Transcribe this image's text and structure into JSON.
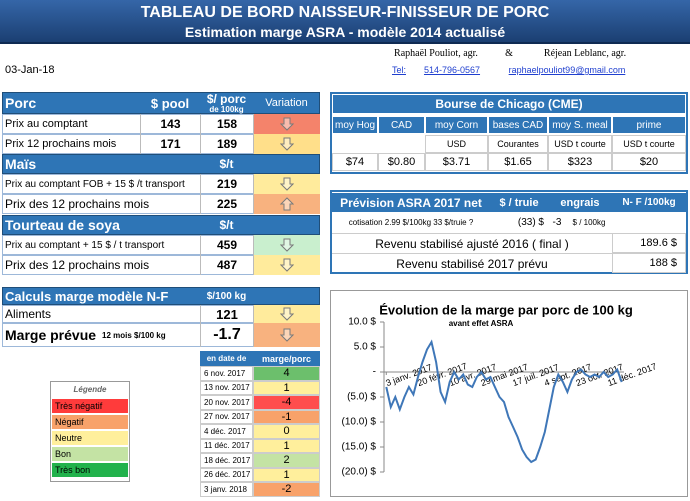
{
  "header": {
    "title": "TABLEAU DE BORD NAISSEUR-FINISSEUR DE PORC",
    "subtitle": "Estimation marge ASRA - modèle 2014 actualisé"
  },
  "authors": {
    "first": "Raphaël Pouliot, agr.",
    "and": "&",
    "second": "Réjean Leblanc, agr."
  },
  "contact": {
    "tel_label": "Tel:",
    "phone": "514-796-0567",
    "email": "raphaelpouliot99@gmail.com"
  },
  "date": "03-Jan-18",
  "porc": {
    "title": "Porc",
    "col_pool": "$ pool",
    "col_porc": "$/ porc",
    "col_porc_sub": "de 100kg",
    "col_variation": "Variation",
    "rows": [
      [
        "Prix au comptant",
        143,
        158
      ],
      [
        "Prix 12 prochains mois",
        171,
        189
      ]
    ]
  },
  "mais": {
    "title": "Maïs",
    "unit": "$/t",
    "rows": [
      [
        "Prix au comptant FOB + 15 $ /t transport",
        219
      ],
      [
        "Prix des 12 prochains mois",
        225
      ]
    ]
  },
  "soya": {
    "title": "Tourteau de soya",
    "unit": "$/t",
    "rows": [
      [
        "Prix au comptant + 15 $ / t transport",
        459
      ],
      [
        "Prix des 12 prochains mois",
        487
      ]
    ]
  },
  "calculs": {
    "title": "Calculs marge  modèle N-F",
    "unit": "$/100 kg",
    "aliments_label": "Aliments",
    "aliments": 121,
    "marge_label": "Marge prévue",
    "marge_note": "12 mois $/100 kg",
    "marge": -1.7
  },
  "chicago": {
    "title": "Bourse de Chicago (CME)",
    "columns": [
      {
        "name": "moy Hog",
        "value": "$74"
      },
      {
        "name": "CAD",
        "value": "$0.80"
      },
      {
        "name": "moy Corn",
        "unit": "USD",
        "value": "$3.71"
      },
      {
        "name": "bases CAD",
        "unit": "Courantes",
        "value": "$1.65"
      },
      {
        "name": "moy S. meal",
        "unit": "USD t courte",
        "value": "$323"
      },
      {
        "name": "prime",
        "unit": "USD t courte",
        "value": "$20"
      }
    ]
  },
  "prevision": {
    "title": "Prévision ASRA 2017 net",
    "col_truie": "$ / truie",
    "col_engrais": "engrais",
    "col_nf": "N- F /100kg",
    "cotisation": "cotisation 2.99 $/100kg  33 $/truie ?",
    "truie": "(33) $",
    "engrais": -3,
    "engrais_unit": "$ / 100kg",
    "rows": [
      [
        "Revenu stabilisé ajusté 2016 ( final )",
        "189.6 $"
      ],
      [
        "Revenu stabilisé 2017 prévu",
        "188 $"
      ]
    ]
  },
  "legend": {
    "title": "Légende",
    "items": [
      {
        "label": "Très négatif",
        "color": "#ff3b3b"
      },
      {
        "label": "Négatif",
        "color": "#f8a26a"
      },
      {
        "label": "Neutre",
        "color": "#ffef9c"
      },
      {
        "label": "Bon",
        "color": "#c4e3a4"
      },
      {
        "label": "Très bon",
        "color": "#22b24c"
      }
    ]
  },
  "marge_table": {
    "col_date": "en date de",
    "col_marge": "marge/porc",
    "rows": [
      {
        "date": "6 nov. 2017",
        "marge": 4,
        "color": "#6cbf6c"
      },
      {
        "date": "13 nov. 2017",
        "marge": 1,
        "color": "#ffef9c"
      },
      {
        "date": "20 nov. 2017",
        "marge": -4,
        "color": "#ff4d4d"
      },
      {
        "date": "27 nov. 2017",
        "marge": -1,
        "color": "#f8a26a"
      },
      {
        "date": "4 déc. 2017",
        "marge": 0,
        "color": "#ffef9c"
      },
      {
        "date": "11 déc. 2017",
        "marge": 1,
        "color": "#ffef9c"
      },
      {
        "date": "18 déc. 2017",
        "marge": 2,
        "color": "#c4e3a4"
      },
      {
        "date": "26 déc. 2017",
        "marge": 1,
        "color": "#ffef9c"
      },
      {
        "date": "3 janv. 2018",
        "marge": -2,
        "color": "#f8a26a"
      }
    ]
  },
  "chart_data": {
    "type": "line",
    "title": "Évolution de la marge par porc de 100 kg",
    "subtitle": "avant effet ASRA",
    "color": "#3f77b8",
    "categories": [
      "3 janv. 2017",
      null,
      null,
      null,
      null,
      null,
      null,
      "20 févr. 2017",
      null,
      null,
      null,
      null,
      null,
      null,
      "10 avr. 2017",
      null,
      null,
      null,
      null,
      null,
      null,
      "29 mai 2017",
      null,
      null,
      null,
      null,
      null,
      null,
      "17 juil. 2017",
      null,
      null,
      null,
      null,
      null,
      null,
      "4 sept. 2017",
      null,
      null,
      null,
      null,
      null,
      null,
      "23 oct. 2017",
      null,
      null,
      null,
      null,
      null,
      null,
      "11 déc. 2017",
      null,
      null,
      null
    ],
    "values": [
      -3,
      -7,
      -5,
      -7.5,
      -5,
      -3,
      -4.5,
      -1,
      2,
      4.5,
      6,
      2,
      -4,
      -6,
      -2,
      0,
      -1.5,
      -0.5,
      -2.5,
      -3,
      -1,
      0,
      -1.5,
      -1,
      -3,
      -5,
      -6,
      -9,
      -11,
      -13,
      -15.5,
      -17,
      -18,
      -17.5,
      -15,
      -12,
      -7.5,
      -3,
      -0.5,
      -2,
      -4,
      -1.5,
      0,
      0.5,
      -0.5,
      -1,
      -0.5,
      -1,
      0,
      -1,
      -0.5,
      0.5,
      -2
    ],
    "ylim": [
      -20,
      10
    ],
    "yticks": [
      {
        "value": -20,
        "label": "(20.0) $"
      },
      {
        "value": -15,
        "label": "(15.0) $"
      },
      {
        "value": -10,
        "label": "(10.0) $"
      },
      {
        "value": -5,
        "label": "(5.0) $"
      },
      {
        "value": 0,
        "label": "-"
      },
      {
        "value": 5,
        "label": "5.0 $"
      },
      {
        "value": 10,
        "label": "10.0 $"
      }
    ]
  }
}
